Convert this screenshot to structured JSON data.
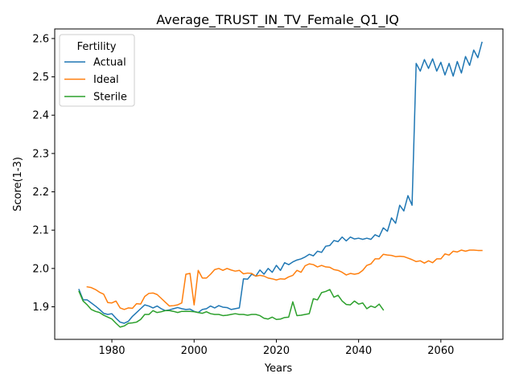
{
  "chart_data": {
    "type": "line",
    "title": "Average_TRUST_IN_TV_Female_Q1_IQ",
    "xlabel": "Years",
    "ylabel": "Score(1-3)",
    "xlim": [
      1966.1,
      2075.1
    ],
    "ylim": [
      1.815,
      2.625
    ],
    "xticks": [
      1980,
      2000,
      2020,
      2040,
      2060
    ],
    "yticks": [
      1.9,
      2.0,
      2.1,
      2.2,
      2.3,
      2.4,
      2.5,
      2.6
    ],
    "ytick_labels": [
      "1.9",
      "2.0",
      "2.1",
      "2.2",
      "2.3",
      "2.4",
      "2.5",
      "2.6"
    ],
    "grid": false,
    "legend": {
      "title": "Fertility",
      "placement": "top-left"
    },
    "colors": {
      "Actual": "#1f77b4",
      "Ideal": "#ff7f0e",
      "Sterile": "#2ca02c"
    },
    "series": [
      {
        "name": "Actual",
        "x": [
          1972,
          1973,
          1974,
          1975,
          1976,
          1977,
          1978,
          1979,
          1980,
          1981,
          1982,
          1983,
          1984,
          1985,
          1986,
          1987,
          1988,
          1989,
          1990,
          1991,
          1992,
          1993,
          1994,
          1995,
          1996,
          1997,
          1998,
          1999,
          2000,
          2001,
          2002,
          2003,
          2004,
          2005,
          2006,
          2007,
          2008,
          2009,
          2010,
          2011,
          2012,
          2013,
          2014,
          2015,
          2016,
          2017,
          2018,
          2019,
          2020,
          2021,
          2022,
          2023,
          2024,
          2025,
          2026,
          2027,
          2028,
          2029,
          2030,
          2031,
          2032,
          2033,
          2034,
          2035,
          2036,
          2037,
          2038,
          2039,
          2040,
          2041,
          2042,
          2043,
          2044,
          2045,
          2046,
          2047,
          2048,
          2049,
          2050,
          2051,
          2052,
          2053,
          2054,
          2055,
          2056,
          2057,
          2058,
          2059,
          2060,
          2061,
          2062,
          2063,
          2064,
          2065,
          2066,
          2067,
          2068,
          2069,
          2070
        ],
        "values": [
          1.945,
          1.918,
          1.918,
          1.91,
          1.902,
          1.893,
          1.883,
          1.88,
          1.882,
          1.87,
          1.86,
          1.857,
          1.862,
          1.875,
          1.885,
          1.895,
          1.905,
          1.902,
          1.897,
          1.902,
          1.895,
          1.89,
          1.892,
          1.895,
          1.898,
          1.895,
          1.893,
          1.894,
          1.888,
          1.885,
          1.893,
          1.895,
          1.902,
          1.897,
          1.903,
          1.899,
          1.898,
          1.893,
          1.895,
          1.897,
          1.973,
          1.972,
          1.985,
          1.98,
          1.996,
          1.985,
          2.0,
          1.99,
          2.008,
          1.995,
          2.015,
          2.01,
          2.017,
          2.022,
          2.025,
          2.03,
          2.037,
          2.033,
          2.045,
          2.042,
          2.058,
          2.06,
          2.073,
          2.07,
          2.082,
          2.072,
          2.082,
          2.077,
          2.079,
          2.076,
          2.079,
          2.076,
          2.088,
          2.083,
          2.106,
          2.097,
          2.132,
          2.118,
          2.165,
          2.15,
          2.19,
          2.165,
          2.535,
          2.515,
          2.545,
          2.522,
          2.547,
          2.515,
          2.538,
          2.505,
          2.535,
          2.502,
          2.54,
          2.51,
          2.553,
          2.53,
          2.57,
          2.55,
          2.59
        ]
      },
      {
        "name": "Ideal",
        "x": [
          1974,
          1975,
          1976,
          1977,
          1978,
          1979,
          1980,
          1981,
          1982,
          1983,
          1984,
          1985,
          1986,
          1987,
          1988,
          1989,
          1990,
          1991,
          1992,
          1993,
          1994,
          1995,
          1996,
          1997,
          1998,
          1999,
          2000,
          2001,
          2002,
          2003,
          2004,
          2005,
          2006,
          2007,
          2008,
          2009,
          2010,
          2011,
          2012,
          2013,
          2014,
          2015,
          2016,
          2017,
          2018,
          2019,
          2020,
          2021,
          2022,
          2023,
          2024,
          2025,
          2026,
          2027,
          2028,
          2029,
          2030,
          2031,
          2032,
          2033,
          2034,
          2035,
          2036,
          2037,
          2038,
          2039,
          2040,
          2041,
          2042,
          2043,
          2044,
          2045,
          2046,
          2047,
          2048,
          2049,
          2050,
          2051,
          2052,
          2053,
          2054,
          2055,
          2056,
          2057,
          2058,
          2059,
          2060,
          2061,
          2062,
          2063,
          2064,
          2065,
          2066,
          2067,
          2068,
          2069,
          2070
        ],
        "values": [
          1.952,
          1.95,
          1.945,
          1.938,
          1.933,
          1.911,
          1.91,
          1.915,
          1.897,
          1.893,
          1.897,
          1.896,
          1.908,
          1.907,
          1.927,
          1.935,
          1.936,
          1.932,
          1.922,
          1.912,
          1.902,
          1.903,
          1.905,
          1.91,
          1.985,
          1.987,
          1.905,
          1.995,
          1.975,
          1.975,
          1.985,
          1.997,
          2.0,
          1.995,
          2.0,
          1.996,
          1.993,
          1.995,
          1.986,
          1.988,
          1.987,
          1.98,
          1.982,
          1.98,
          1.975,
          1.973,
          1.97,
          1.973,
          1.972,
          1.978,
          1.982,
          1.995,
          1.99,
          2.007,
          2.012,
          2.01,
          2.004,
          2.008,
          2.004,
          2.003,
          1.997,
          1.995,
          1.99,
          1.983,
          1.987,
          1.985,
          1.987,
          1.995,
          2.008,
          2.012,
          2.025,
          2.025,
          2.037,
          2.035,
          2.034,
          2.031,
          2.032,
          2.031,
          2.027,
          2.023,
          2.018,
          2.02,
          2.014,
          2.02,
          2.015,
          2.025,
          2.025,
          2.038,
          2.035,
          2.045,
          2.043,
          2.048,
          2.045,
          2.048,
          2.048,
          2.047,
          2.047
        ]
      },
      {
        "name": "Sterile",
        "x": [
          1972,
          1973,
          1974,
          1975,
          1976,
          1977,
          1978,
          1979,
          1980,
          1981,
          1982,
          1983,
          1984,
          1985,
          1986,
          1987,
          1988,
          1989,
          1990,
          1991,
          1992,
          1993,
          1994,
          1995,
          1996,
          1997,
          1998,
          1999,
          2000,
          2001,
          2002,
          2003,
          2004,
          2005,
          2006,
          2007,
          2008,
          2009,
          2010,
          2011,
          2012,
          2013,
          2014,
          2015,
          2016,
          2017,
          2018,
          2019,
          2020,
          2021,
          2022,
          2023,
          2024,
          2025,
          2026,
          2027,
          2028,
          2029,
          2030,
          2031,
          2032,
          2033,
          2034,
          2035,
          2036,
          2037,
          2038,
          2039,
          2040,
          2041,
          2042,
          2043,
          2044,
          2045,
          2046
        ],
        "values": [
          1.94,
          1.915,
          1.905,
          1.893,
          1.888,
          1.885,
          1.878,
          1.873,
          1.868,
          1.857,
          1.847,
          1.85,
          1.857,
          1.858,
          1.86,
          1.867,
          1.88,
          1.88,
          1.89,
          1.885,
          1.887,
          1.89,
          1.89,
          1.888,
          1.885,
          1.888,
          1.888,
          1.888,
          1.887,
          1.885,
          1.883,
          1.887,
          1.882,
          1.88,
          1.88,
          1.877,
          1.878,
          1.88,
          1.882,
          1.88,
          1.88,
          1.878,
          1.88,
          1.88,
          1.877,
          1.87,
          1.868,
          1.873,
          1.867,
          1.868,
          1.872,
          1.873,
          1.913,
          1.877,
          1.878,
          1.88,
          1.882,
          1.921,
          1.918,
          1.937,
          1.94,
          1.945,
          1.925,
          1.93,
          1.915,
          1.906,
          1.905,
          1.915,
          1.907,
          1.91,
          1.895,
          1.902,
          1.898,
          1.907,
          1.892
        ]
      }
    ]
  }
}
